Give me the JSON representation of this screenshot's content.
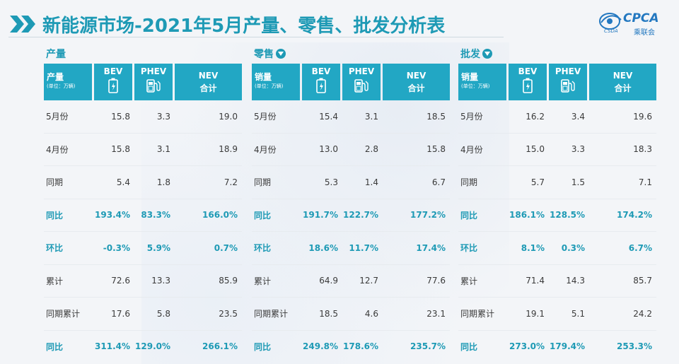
{
  "title": "新能源市场-2021年5月产量、零售、批发分析表",
  "logo": {
    "brand": "CPCA",
    "cn": "乘联会",
    "small": "CSDA"
  },
  "header": {
    "bev": "BEV",
    "phev": "PHEV",
    "nev1": "NEV",
    "nev2": "合计",
    "unit": "(单位：万辆)"
  },
  "panels": [
    {
      "label": "产量",
      "has_icon": false,
      "head": "产量",
      "rows": [
        [
          "5月份",
          "15.8",
          "3.3",
          "19.0"
        ],
        [
          "4月份",
          "15.8",
          "3.1",
          "18.9"
        ],
        [
          "同期",
          "5.4",
          "1.8",
          "7.2"
        ],
        [
          "同比",
          "193.4%",
          "83.3%",
          "166.0%"
        ],
        [
          "环比",
          "-0.3%",
          "5.9%",
          "0.7%"
        ],
        [
          "累计",
          "72.6",
          "13.3",
          "85.9"
        ],
        [
          "同期累计",
          "17.6",
          "5.8",
          "23.5"
        ],
        [
          "同比",
          "311.4%",
          "129.0%",
          "266.1%"
        ]
      ]
    },
    {
      "label": "零售",
      "has_icon": true,
      "head": "销量",
      "rows": [
        [
          "5月份",
          "15.4",
          "3.1",
          "18.5"
        ],
        [
          "4月份",
          "13.0",
          "2.8",
          "15.8"
        ],
        [
          "同期",
          "5.3",
          "1.4",
          "6.7"
        ],
        [
          "同比",
          "191.7%",
          "122.7%",
          "177.2%"
        ],
        [
          "环比",
          "18.6%",
          "11.7%",
          "17.4%"
        ],
        [
          "累计",
          "64.9",
          "12.7",
          "77.6"
        ],
        [
          "同期累计",
          "18.5",
          "4.6",
          "23.1"
        ],
        [
          "同比",
          "249.8%",
          "178.6%",
          "235.7%"
        ]
      ]
    },
    {
      "label": "批发",
      "has_icon": true,
      "head": "销量",
      "rows": [
        [
          "5月份",
          "16.2",
          "3.4",
          "19.6"
        ],
        [
          "4月份",
          "15.0",
          "3.3",
          "18.3"
        ],
        [
          "同期",
          "5.7",
          "1.5",
          "7.1"
        ],
        [
          "同比",
          "186.1%",
          "128.5%",
          "174.2%"
        ],
        [
          "环比",
          "8.1%",
          "0.3%",
          "6.7%"
        ],
        [
          "累计",
          "71.4",
          "14.3",
          "85.7"
        ],
        [
          "同期累计",
          "19.1",
          "5.1",
          "24.2"
        ],
        [
          "同比",
          "273.0%",
          "179.4%",
          "253.3%"
        ]
      ]
    }
  ],
  "highlight_rows": [
    3,
    4,
    7
  ],
  "colors": {
    "accent": "#1e9ab5",
    "header_bg": "#22a7c4"
  },
  "icons": {
    "bev": "battery-icon",
    "phev": "fuel-pump-icon",
    "download": "download-circle-icon",
    "title_marker": "double-chevron-icon"
  }
}
